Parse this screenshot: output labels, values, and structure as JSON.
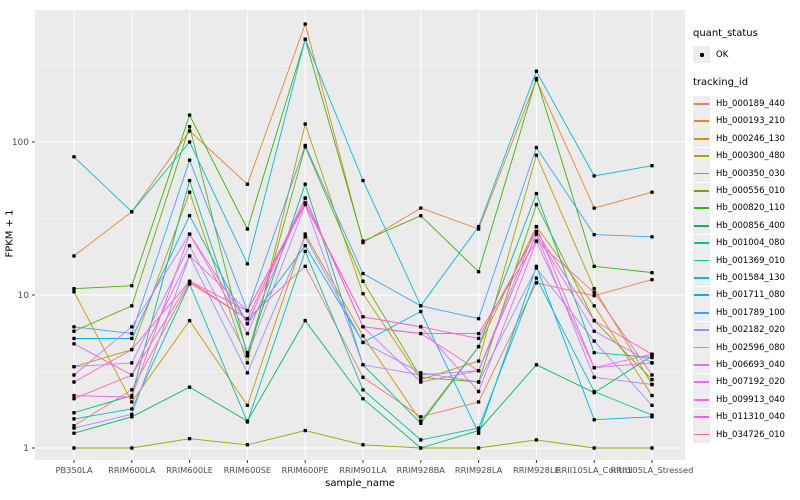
{
  "figure": {
    "background": "#FFFFFF",
    "panel_background": "#EBEBEB",
    "grid_color": "#FFFFFF",
    "point_color": "#000000",
    "tick_text_color": "#4D4D4D"
  },
  "axes": {
    "x": {
      "title": "sample_name",
      "categories": [
        "PB350LA",
        "RRIM600LA",
        "RRIM600LE",
        "RRIM600SE",
        "RRIM600PE",
        "RRIM901LA",
        "RRIM928BA",
        "RRIM928LA",
        "RRIM928LE",
        "RRII105LA_Control",
        "RRII105LA_Stressed"
      ]
    },
    "y": {
      "title": "FPKM + 1",
      "scale": "log10",
      "tick_labels": [
        "1",
        "10",
        "100"
      ],
      "tick_values": [
        1,
        10,
        100
      ]
    }
  },
  "legend": {
    "quant_status": {
      "title": "quant_status",
      "items": [
        {
          "label": "OK",
          "symbol": "black-point"
        }
      ]
    },
    "tracking_id": {
      "title": "tracking_id"
    }
  },
  "chart_data": {
    "type": "line",
    "title": "",
    "xlabel": "sample_name",
    "ylabel": "FPKM + 1",
    "y_scale": "log10",
    "ylim": [
      0.95,
      700
    ],
    "grid": true,
    "legend_position": "right",
    "point_marker": {
      "label": "OK",
      "color": "#000000"
    },
    "categories": [
      "PB350LA",
      "RRIM600LA",
      "RRIM600LE",
      "RRIM600SE",
      "RRIM600PE",
      "RRIM901LA",
      "RRIM928BA",
      "RRIM928LA",
      "RRIM928LE",
      "RRII105LA_Control",
      "RRII105LA_Stressed"
    ],
    "series": [
      {
        "name": "Hb_000189_440",
        "color": "#F8766D",
        "values": [
          1.4,
          2.4,
          12,
          7,
          15.4,
          2.9,
          1.6,
          2,
          12,
          9.9,
          12.6
        ]
      },
      {
        "name": "Hb_000193_210",
        "color": "#E88526",
        "values": [
          18,
          35,
          118,
          53,
          590,
          22,
          37,
          27,
          255,
          37,
          47
        ]
      },
      {
        "name": "Hb_000246_130",
        "color": "#D39200",
        "values": [
          10.5,
          2,
          6.8,
          1.9,
          25,
          5.4,
          1.5,
          4.6,
          28,
          8.5,
          2.2
        ]
      },
      {
        "name": "Hb_000300_480",
        "color": "#B79F00",
        "values": [
          3.4,
          4.4,
          47,
          3.6,
          131,
          10.2,
          2.8,
          3.7,
          82,
          11,
          2.6
        ]
      },
      {
        "name": "Hb_000350_030",
        "color": "#93AA00",
        "values": [
          1,
          1,
          1.15,
          1.05,
          1.3,
          1.05,
          1,
          1,
          1.13,
          1,
          1
        ]
      },
      {
        "name": "Hb_000556_010",
        "color": "#64B200",
        "values": [
          5.8,
          8.5,
          126,
          4,
          93,
          12.3,
          2.9,
          2.7,
          39,
          6.8,
          2.8
        ]
      },
      {
        "name": "Hb_000820_110",
        "color": "#39B600",
        "values": [
          11,
          11.5,
          150,
          27,
          470,
          22.5,
          33,
          14.2,
          260,
          15.4,
          14
        ]
      },
      {
        "name": "Hb_000856_400",
        "color": "#00BC59",
        "values": [
          1.25,
          1.6,
          2.5,
          1.5,
          6.8,
          2.1,
          1,
          1.3,
          3.5,
          2.3,
          4
        ]
      },
      {
        "name": "Hb_001004_080",
        "color": "#00C08D",
        "values": [
          1.7,
          2.2,
          56,
          4.2,
          53,
          3.5,
          1.45,
          4.6,
          46,
          4.2,
          3.9
        ]
      },
      {
        "name": "Hb_001369_010",
        "color": "#00C0B4",
        "values": [
          1.55,
          1.8,
          11.8,
          1.48,
          19.3,
          2.4,
          1.13,
          1.35,
          12.9,
          2.34,
          1.64
        ]
      },
      {
        "name": "Hb_001584_130",
        "color": "#00BCD8",
        "values": [
          80,
          35,
          100,
          16,
          470,
          56,
          8.5,
          28,
          290,
          60,
          70
        ]
      },
      {
        "name": "Hb_001711_080",
        "color": "#00B3F2",
        "values": [
          5.2,
          5.2,
          33,
          6.5,
          21,
          4.9,
          7.8,
          1.25,
          15.4,
          1.53,
          1.6
        ]
      },
      {
        "name": "Hb_001789_100",
        "color": "#3DA3FF",
        "values": [
          6.2,
          5.6,
          76,
          7.9,
          95,
          13.8,
          8.5,
          7,
          92,
          24.8,
          24
        ]
      },
      {
        "name": "Hb_002182_020",
        "color": "#9590FF",
        "values": [
          1.35,
          1.66,
          18,
          3.1,
          24,
          4.9,
          3.1,
          2.7,
          15,
          5,
          1.9
        ]
      },
      {
        "name": "Hb_002596_080",
        "color": "#B983FF",
        "values": [
          3.4,
          3.6,
          21,
          4,
          39,
          3.5,
          3,
          3.2,
          25,
          2.9,
          2.6
        ]
      },
      {
        "name": "Hb_006693_040",
        "color": "#D575FE",
        "values": [
          3,
          6.2,
          25,
          5.6,
          43,
          6.2,
          2.7,
          3.2,
          25,
          5.8,
          3.6
        ]
      },
      {
        "name": "Hb_007192_020",
        "color": "#E76BF3",
        "values": [
          4.8,
          3,
          18,
          7.9,
          40,
          7.2,
          6.2,
          2.34,
          22.5,
          3.35,
          4.1
        ]
      },
      {
        "name": "Hb_009913_040",
        "color": "#F564E3",
        "values": [
          2.2,
          2.15,
          25,
          6.5,
          43,
          6.2,
          5.6,
          3.2,
          28,
          3.35,
          3.6
        ]
      },
      {
        "name": "Hb_011310_040",
        "color": "#FD61D1",
        "values": [
          2.7,
          4.4,
          12.3,
          7.9,
          39,
          7.2,
          6.2,
          5.2,
          26,
          6.8,
          4.1
        ]
      },
      {
        "name": "Hb_034726_010",
        "color": "#FF65B0",
        "values": [
          2.1,
          3,
          12.3,
          7,
          43,
          6.2,
          5.6,
          5.6,
          22.5,
          10.4,
          3
        ]
      }
    ]
  }
}
